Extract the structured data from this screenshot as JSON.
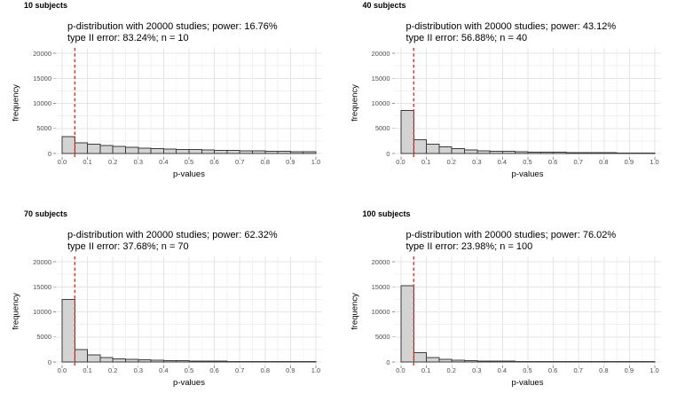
{
  "page": {
    "background": "#ffffff"
  },
  "colors": {
    "bar_fill": "#d3d3d3",
    "bar_border": "#3b3b3b",
    "grid_major": "#e4e4e4",
    "grid_minor": "#f1f1f1",
    "axis_tick_mark": "#919191",
    "tick_label_text": "#4d4d4d",
    "title_text": "#000000",
    "red_dashed_line": "#f02c1f"
  },
  "axes": {
    "xlabel": "p-values",
    "ylabel": "frequency",
    "x_ticks": [
      "0.0",
      "0.1",
      "0.2",
      "0.3",
      "0.4",
      "0.5",
      "0.6",
      "0.7",
      "0.8",
      "0.9",
      "1.0"
    ],
    "y_ticks": [
      "0",
      "5000",
      "10000",
      "15000",
      "20000"
    ],
    "xlim": [
      0,
      1
    ],
    "ylim": [
      0,
      20000
    ],
    "grid": "major and minor gridlines on, white panel",
    "legend": "none"
  },
  "chart_data": [
    {
      "type": "bar",
      "chart_kind": "histogram",
      "panel_label": "10 subjects",
      "title": "p-distribution with 20000 studies; power: 16.76%",
      "subtitle": "type II error: 83.24%; n = 10",
      "n": 10,
      "studies": 20000,
      "power_pct": 16.76,
      "type_II_error_pct": 83.24,
      "vline_x": 0.05,
      "binwidth": 0.05,
      "bin_starts": [
        0,
        0.05,
        0.1,
        0.15,
        0.2,
        0.25,
        0.3,
        0.35,
        0.4,
        0.45,
        0.5,
        0.55,
        0.6,
        0.65,
        0.7,
        0.75,
        0.8,
        0.85,
        0.9,
        0.95
      ],
      "values": [
        3352,
        2150,
        1850,
        1580,
        1380,
        1230,
        1100,
        1000,
        910,
        830,
        760,
        700,
        640,
        590,
        540,
        500,
        460,
        420,
        380,
        340
      ],
      "xlabel": "p-values",
      "ylabel": "frequency",
      "ylim": [
        0,
        20000
      ]
    },
    {
      "type": "bar",
      "chart_kind": "histogram",
      "panel_label": "40 subjects",
      "title": "p-distribution with 20000 studies; power: 43.12%",
      "subtitle": "type II error: 56.88%; n = 40",
      "n": 40,
      "studies": 20000,
      "power_pct": 43.12,
      "type_II_error_pct": 56.88,
      "vline_x": 0.05,
      "binwidth": 0.05,
      "bin_starts": [
        0,
        0.05,
        0.1,
        0.15,
        0.2,
        0.25,
        0.3,
        0.35,
        0.4,
        0.45,
        0.5,
        0.55,
        0.6,
        0.65,
        0.7,
        0.75,
        0.8,
        0.85,
        0.9,
        0.95
      ],
      "values": [
        8624,
        2750,
        1900,
        1320,
        950,
        720,
        560,
        470,
        400,
        345,
        300,
        260,
        230,
        200,
        180,
        160,
        145,
        130,
        120,
        110
      ],
      "xlabel": "p-values",
      "ylabel": "frequency",
      "ylim": [
        0,
        20000
      ]
    },
    {
      "type": "bar",
      "chart_kind": "histogram",
      "panel_label": "70 subjects",
      "title": "p-distribution with 20000 studies; power: 62.32%",
      "subtitle": "type II error: 37.68%; n = 70",
      "n": 70,
      "studies": 20000,
      "power_pct": 62.32,
      "type_II_error_pct": 37.68,
      "vline_x": 0.05,
      "binwidth": 0.05,
      "bin_starts": [
        0,
        0.05,
        0.1,
        0.15,
        0.2,
        0.25,
        0.3,
        0.35,
        0.4,
        0.45,
        0.5,
        0.55,
        0.6,
        0.65,
        0.7,
        0.75,
        0.8,
        0.85,
        0.9,
        0.95
      ],
      "values": [
        12464,
        2480,
        1400,
        900,
        640,
        490,
        400,
        330,
        270,
        230,
        195,
        165,
        140,
        120,
        105,
        90,
        80,
        70,
        62,
        55
      ],
      "xlabel": "p-values",
      "ylabel": "frequency",
      "ylim": [
        0,
        20000
      ]
    },
    {
      "type": "bar",
      "chart_kind": "histogram",
      "panel_label": "100 subjects",
      "title": "p-distribution with 20000 studies; power: 76.02%",
      "subtitle": "type II error: 23.98%; n = 100",
      "n": 100,
      "studies": 20000,
      "power_pct": 76.02,
      "type_II_error_pct": 23.98,
      "vline_x": 0.05,
      "binwidth": 0.05,
      "bin_starts": [
        0,
        0.05,
        0.1,
        0.15,
        0.2,
        0.25,
        0.3,
        0.35,
        0.4,
        0.45,
        0.5,
        0.55,
        0.6,
        0.65,
        0.7,
        0.75,
        0.8,
        0.85,
        0.9,
        0.95
      ],
      "values": [
        15204,
        1880,
        850,
        530,
        370,
        280,
        220,
        175,
        145,
        120,
        100,
        85,
        72,
        62,
        54,
        48,
        42,
        38,
        34,
        30
      ],
      "xlabel": "p-values",
      "ylabel": "frequency",
      "ylim": [
        0,
        20000
      ]
    }
  ]
}
